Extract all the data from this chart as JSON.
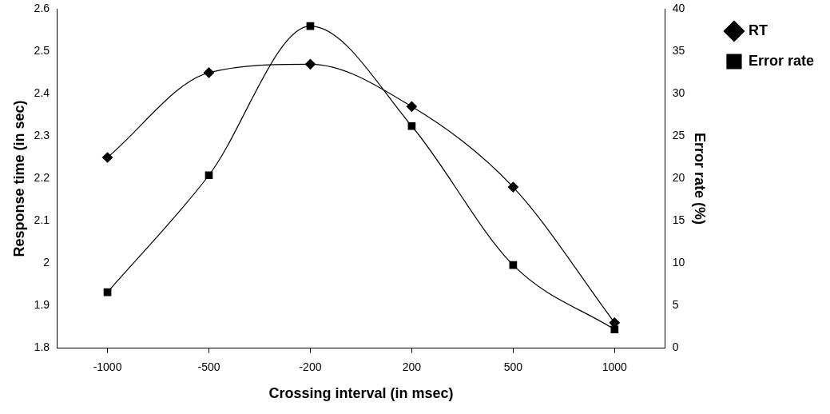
{
  "chart_data": {
    "type": "line",
    "xlabel": "Crossing interval (in msec)",
    "ylabel": "Response time (in sec)",
    "y2label": "Error rate (%)",
    "categories": [
      "-1000",
      "-500",
      "-200",
      "200",
      "500",
      "1000"
    ],
    "series": [
      {
        "name": "RT",
        "color": "#000000",
        "marker": "diamond",
        "values": [
          2.25,
          2.45,
          2.47,
          2.37,
          2.18,
          1.86
        ]
      },
      {
        "name": "Error rate",
        "color": "#000000",
        "marker": "square",
        "axis": "y2",
        "values": [
          6.6,
          20.4,
          38.0,
          26.2,
          9.8,
          2.2
        ]
      }
    ],
    "ylim": [
      1.8,
      2.6
    ],
    "yticks": [
      1.8,
      1.9,
      2,
      2.1,
      2.2,
      2.3,
      2.4,
      2.5,
      2.6
    ],
    "y2lim": [
      0,
      40
    ],
    "y2ticks": [
      0,
      5,
      10,
      15,
      20,
      25,
      30,
      35,
      40
    ],
    "grid": false,
    "legend": "top right"
  }
}
